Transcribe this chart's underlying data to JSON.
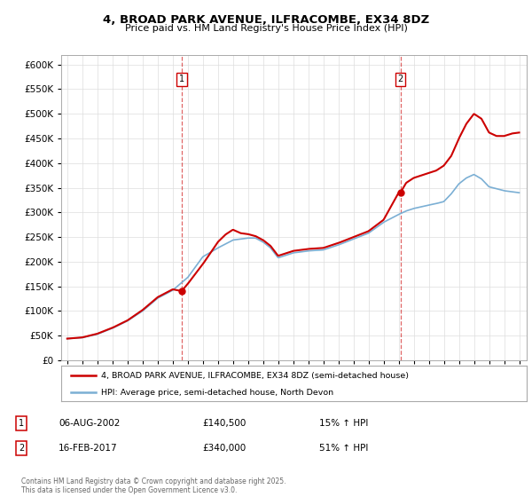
{
  "title": "4, BROAD PARK AVENUE, ILFRACOMBE, EX34 8DZ",
  "subtitle": "Price paid vs. HM Land Registry's House Price Index (HPI)",
  "legend_entry1": "4, BROAD PARK AVENUE, ILFRACOMBE, EX34 8DZ (semi-detached house)",
  "legend_entry2": "HPI: Average price, semi-detached house, North Devon",
  "annotation1_label": "1",
  "annotation1_date": "06-AUG-2002",
  "annotation1_price": "£140,500",
  "annotation1_hpi": "15% ↑ HPI",
  "annotation2_label": "2",
  "annotation2_date": "16-FEB-2017",
  "annotation2_price": "£340,000",
  "annotation2_hpi": "51% ↑ HPI",
  "copyright_text": "Contains HM Land Registry data © Crown copyright and database right 2025.\nThis data is licensed under the Open Government Licence v3.0.",
  "line1_color": "#cc0000",
  "line2_color": "#7bafd4",
  "vline_color": "#cc0000",
  "grid_color": "#dddddd",
  "background_color": "#ffffff",
  "sale1_year": 2002.6,
  "sale1_price": 140500,
  "sale2_year": 2017.12,
  "sale2_price": 340000,
  "xtick_years": [
    1995,
    1996,
    1997,
    1998,
    1999,
    2000,
    2001,
    2002,
    2003,
    2004,
    2005,
    2006,
    2007,
    2008,
    2009,
    2010,
    2011,
    2012,
    2013,
    2014,
    2015,
    2016,
    2017,
    2018,
    2019,
    2020,
    2021,
    2022,
    2023,
    2024,
    2025
  ],
  "ylim": [
    0,
    620000
  ],
  "yticks": [
    0,
    50000,
    100000,
    150000,
    200000,
    250000,
    300000,
    350000,
    400000,
    450000,
    500000,
    550000,
    600000
  ],
  "hpi_anchors_x": [
    1995,
    1996,
    1997,
    1998,
    1999,
    2000,
    2001,
    2002,
    2003,
    2004,
    2005,
    2006,
    2007,
    2007.5,
    2008,
    2008.5,
    2009,
    2010,
    2011,
    2012,
    2013,
    2014,
    2015,
    2016,
    2017,
    2017.5,
    2018,
    2019,
    2019.5,
    2020,
    2020.5,
    2021,
    2021.5,
    2022,
    2022.5,
    2023,
    2024,
    2025
  ],
  "hpi_anchors_y": [
    44000,
    46000,
    53000,
    65000,
    80000,
    100000,
    126000,
    142000,
    168000,
    210000,
    228000,
    244000,
    248000,
    248000,
    240000,
    228000,
    208000,
    218000,
    222000,
    224000,
    234000,
    246000,
    258000,
    280000,
    296000,
    303000,
    308000,
    315000,
    318000,
    322000,
    338000,
    358000,
    370000,
    377000,
    368000,
    352000,
    344000,
    340000
  ],
  "price_anchors_x": [
    1995,
    1996,
    1997,
    1998,
    1999,
    2000,
    2001,
    2002,
    2002.6,
    2003,
    2004,
    2005,
    2005.5,
    2006,
    2006.5,
    2007,
    2007.5,
    2008,
    2008.5,
    2009,
    2010,
    2011,
    2012,
    2013,
    2014,
    2015,
    2016,
    2017,
    2017.12,
    2017.5,
    2018,
    2019,
    2019.5,
    2020,
    2020.5,
    2021,
    2021.5,
    2022,
    2022.5,
    2023,
    2023.5,
    2024,
    2024.5,
    2025
  ],
  "price_anchors_y": [
    44000,
    46500,
    54000,
    66000,
    81000,
    102000,
    128000,
    144000,
    140500,
    155000,
    195000,
    240000,
    255000,
    265000,
    258000,
    256000,
    252000,
    244000,
    232000,
    212000,
    222000,
    226000,
    228000,
    238000,
    250000,
    262000,
    285000,
    340000,
    340000,
    360000,
    370000,
    380000,
    385000,
    395000,
    415000,
    450000,
    480000,
    500000,
    490000,
    462000,
    455000,
    455000,
    460000,
    462000
  ]
}
